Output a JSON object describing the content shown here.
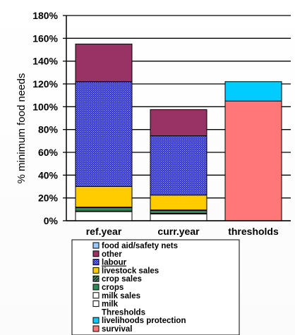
{
  "chart_data": {
    "type": "bar",
    "stacked": true,
    "ylabel": "% minimum food needs",
    "ylim": [
      0,
      180
    ],
    "y_ticks": [
      "0%",
      "20%",
      "40%",
      "60%",
      "80%",
      "100%",
      "120%",
      "140%",
      "160%",
      "180%"
    ],
    "y_tick_values": [
      0,
      20,
      40,
      60,
      80,
      100,
      120,
      140,
      160,
      180
    ],
    "categories": [
      "ref.year",
      "curr.year",
      "thresholds"
    ],
    "series": [
      {
        "name": "milk",
        "values": [
          8,
          6,
          0
        ],
        "color": "#ffffff",
        "pattern": "none"
      },
      {
        "name": "milk sales",
        "values": [
          0.5,
          0.5,
          0
        ],
        "color": "#ffffff",
        "pattern": "none"
      },
      {
        "name": "crops",
        "values": [
          3,
          2.5,
          0
        ],
        "color": "#2e8b57",
        "pattern": "none"
      },
      {
        "name": "crop sales",
        "values": [
          0.5,
          0.5,
          0
        ],
        "color": "#1a3a2a",
        "pattern": "diagonal"
      },
      {
        "name": "livestock sales",
        "values": [
          18,
          13,
          0
        ],
        "color": "#ffcc00",
        "pattern": "none"
      },
      {
        "name": "labour",
        "values": [
          92,
          52,
          0
        ],
        "color": "#3333cc",
        "pattern": "dots"
      },
      {
        "name": "other",
        "values": [
          33,
          23,
          0
        ],
        "color": "#993366",
        "pattern": "none"
      },
      {
        "name": "food aid/safety nets",
        "values": [
          0,
          0,
          0
        ],
        "color": "#99ccff",
        "pattern": "none"
      },
      {
        "name": "survival",
        "values": [
          0,
          0,
          105
        ],
        "color": "#ff7777",
        "pattern": "none"
      },
      {
        "name": "livelihoods protection",
        "values": [
          0,
          0,
          17
        ],
        "color": "#00ccff",
        "pattern": "none"
      }
    ],
    "grid": true,
    "legend_position": "bottom",
    "legend": [
      {
        "label": "food aid/safety nets",
        "color": "#99ccff",
        "pattern": "none"
      },
      {
        "label": "other",
        "color": "#993366",
        "pattern": "none"
      },
      {
        "label": "labour",
        "color": "#3333cc",
        "pattern": "dots",
        "underline": true
      },
      {
        "label": "livestock sales",
        "color": "#ffcc00",
        "pattern": "none"
      },
      {
        "label": "crop sales",
        "color": "#1a3a2a",
        "pattern": "diagonal"
      },
      {
        "label": "crops",
        "color": "#2e8b57",
        "pattern": "none"
      },
      {
        "label": "milk sales",
        "color": "#ffffff",
        "pattern": "none"
      },
      {
        "label": "milk",
        "color": "#ffffff",
        "pattern": "none"
      },
      {
        "label": "Thresholds",
        "heading": true
      },
      {
        "label": "livelihoods protection",
        "color": "#00ccff",
        "pattern": "none"
      },
      {
        "label": "survival",
        "color": "#ff7777",
        "pattern": "none"
      }
    ]
  }
}
